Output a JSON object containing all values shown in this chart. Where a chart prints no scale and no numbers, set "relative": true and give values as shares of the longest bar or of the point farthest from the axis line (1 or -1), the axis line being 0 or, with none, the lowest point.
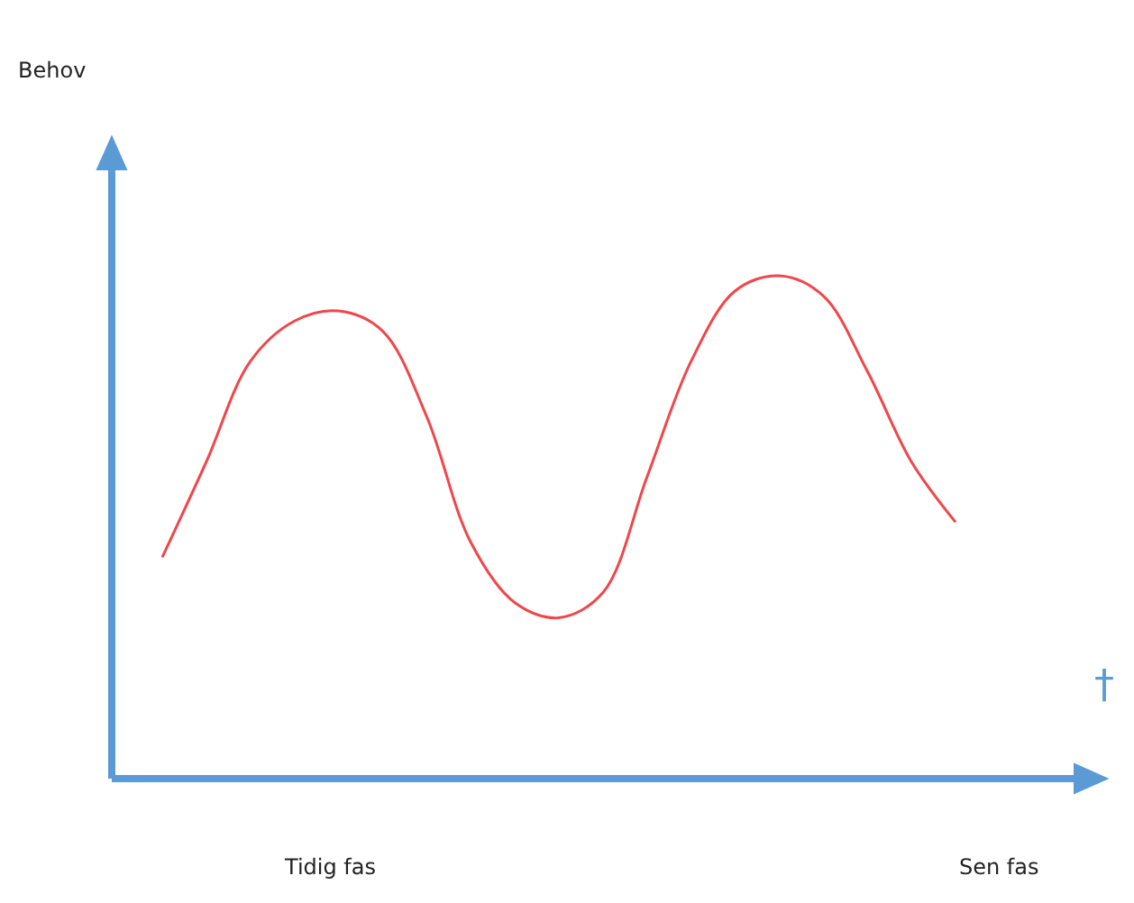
{
  "chart_data": {
    "type": "line",
    "relative": true,
    "categories": [
      null,
      null,
      null,
      null,
      null,
      null,
      null,
      null,
      null,
      null,
      null,
      null,
      null,
      null,
      null,
      null,
      null,
      null,
      null
    ],
    "series": [
      {
        "color": "#f0464b",
        "values": [
          0.44,
          0.63,
          0.83,
          0.91,
          0.93,
          0.89,
          0.72,
          0.47,
          0.35,
          0.32,
          0.37,
          0.6,
          0.83,
          0.97,
          1.0,
          0.96,
          0.81,
          0.63,
          0.51
        ]
      }
    ],
    "annotations": [
      "Behov",
      "Tidig fas",
      "Sen fas",
      "†"
    ],
    "marker": "none",
    "line_style": "solid",
    "legend": false
  }
}
